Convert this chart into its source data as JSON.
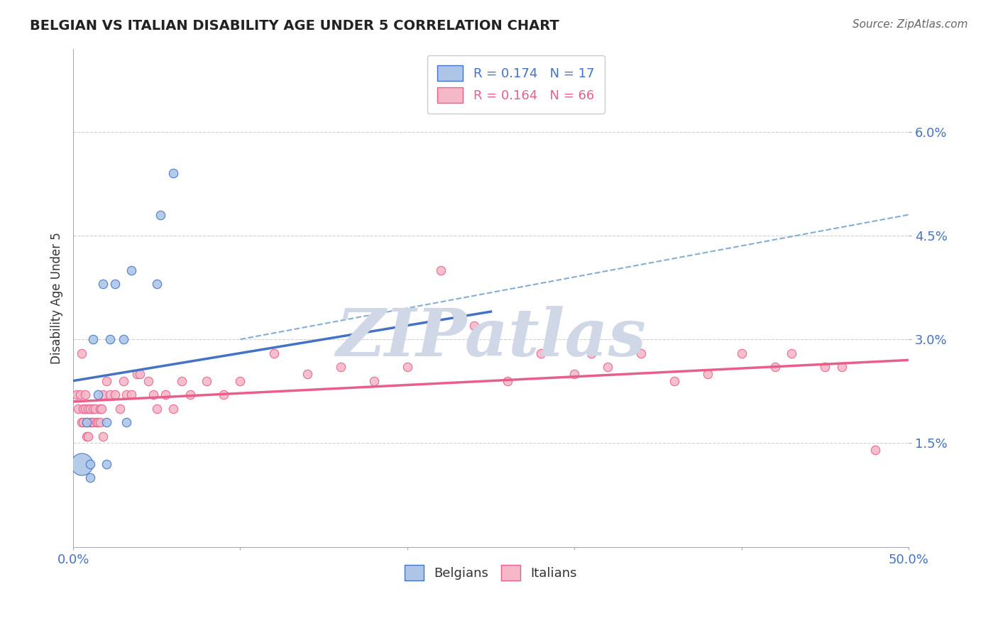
{
  "title": "BELGIAN VS ITALIAN DISABILITY AGE UNDER 5 CORRELATION CHART",
  "source": "Source: ZipAtlas.com",
  "ylabel": "Disability Age Under 5",
  "xlim": [
    0.0,
    0.5
  ],
  "ylim": [
    0.0,
    0.072
  ],
  "yticks": [
    0.015,
    0.03,
    0.045,
    0.06
  ],
  "ytick_labels": [
    "1.5%",
    "3.0%",
    "4.5%",
    "6.0%"
  ],
  "xtick_positions": [
    0.0,
    0.1,
    0.2,
    0.3,
    0.4,
    0.5
  ],
  "xtick_labels_ends": {
    "0": "0.0%",
    "5": "50.0%"
  },
  "belgian_color": "#adc6e8",
  "italian_color": "#f5b8c8",
  "blue_line_color": "#4472c4",
  "pink_line_color": "#e8608a",
  "dashed_line_color": "#85aed4",
  "legend_r_belgian": "R = 0.174",
  "legend_n_belgian": "N = 17",
  "legend_r_italian": "R = 0.164",
  "legend_n_italian": "N = 66",
  "belgians_x": [
    0.005,
    0.008,
    0.01,
    0.01,
    0.012,
    0.015,
    0.018,
    0.02,
    0.02,
    0.022,
    0.025,
    0.03,
    0.032,
    0.035,
    0.05,
    0.052,
    0.06
  ],
  "belgians_y": [
    0.012,
    0.018,
    0.01,
    0.012,
    0.03,
    0.022,
    0.038,
    0.018,
    0.012,
    0.03,
    0.038,
    0.03,
    0.018,
    0.04,
    0.038,
    0.048,
    0.054
  ],
  "belgians_size": [
    80,
    80,
    80,
    80,
    80,
    80,
    80,
    80,
    80,
    80,
    80,
    80,
    80,
    80,
    80,
    80,
    80
  ],
  "belgians_size_special": [
    600,
    80,
    80,
    80,
    80,
    80,
    80,
    80,
    80,
    80,
    80,
    80,
    80,
    80,
    80,
    80,
    80
  ],
  "italians_x": [
    0.002,
    0.003,
    0.004,
    0.005,
    0.005,
    0.006,
    0.006,
    0.007,
    0.007,
    0.008,
    0.008,
    0.009,
    0.009,
    0.01,
    0.01,
    0.011,
    0.012,
    0.012,
    0.013,
    0.014,
    0.015,
    0.016,
    0.016,
    0.017,
    0.018,
    0.018,
    0.02,
    0.022,
    0.025,
    0.028,
    0.03,
    0.032,
    0.035,
    0.038,
    0.04,
    0.045,
    0.048,
    0.05,
    0.055,
    0.06,
    0.065,
    0.07,
    0.08,
    0.09,
    0.1,
    0.12,
    0.14,
    0.16,
    0.18,
    0.2,
    0.22,
    0.24,
    0.26,
    0.28,
    0.3,
    0.31,
    0.32,
    0.34,
    0.36,
    0.38,
    0.4,
    0.42,
    0.43,
    0.45,
    0.46,
    0.48
  ],
  "italians_y": [
    0.022,
    0.02,
    0.022,
    0.028,
    0.018,
    0.02,
    0.018,
    0.022,
    0.02,
    0.018,
    0.016,
    0.02,
    0.016,
    0.02,
    0.018,
    0.018,
    0.02,
    0.018,
    0.02,
    0.018,
    0.018,
    0.02,
    0.018,
    0.02,
    0.016,
    0.022,
    0.024,
    0.022,
    0.022,
    0.02,
    0.024,
    0.022,
    0.022,
    0.025,
    0.025,
    0.024,
    0.022,
    0.02,
    0.022,
    0.02,
    0.024,
    0.022,
    0.024,
    0.022,
    0.024,
    0.028,
    0.025,
    0.026,
    0.024,
    0.026,
    0.04,
    0.032,
    0.024,
    0.028,
    0.025,
    0.028,
    0.026,
    0.028,
    0.024,
    0.025,
    0.028,
    0.026,
    0.028,
    0.026,
    0.026,
    0.014
  ],
  "italians_size": [
    80,
    80,
    80,
    80,
    80,
    80,
    80,
    80,
    80,
    80,
    80,
    80,
    80,
    80,
    80,
    80,
    80,
    80,
    80,
    80,
    80,
    80,
    80,
    80,
    80,
    80,
    80,
    80,
    80,
    80,
    80,
    80,
    80,
    80,
    80,
    80,
    80,
    80,
    80,
    80,
    80,
    80,
    80,
    80,
    80,
    80,
    80,
    80,
    80,
    80,
    80,
    80,
    80,
    80,
    80,
    80,
    80,
    80,
    80,
    80,
    80,
    80,
    80,
    80,
    80,
    80
  ],
  "blue_trend_x0": 0.0,
  "blue_trend_y0": 0.024,
  "blue_trend_x1": 0.25,
  "blue_trend_y1": 0.034,
  "pink_trend_x0": 0.0,
  "pink_trend_y0": 0.021,
  "pink_trend_x1": 0.5,
  "pink_trend_y1": 0.027,
  "dash_trend_x0": 0.1,
  "dash_trend_y0": 0.03,
  "dash_trend_x1": 0.5,
  "dash_trend_y1": 0.048,
  "watermark": "ZIPatlas",
  "watermark_color": "#d0d8e8",
  "bg_color": "#ffffff",
  "grid_color": "#d0d0d0"
}
